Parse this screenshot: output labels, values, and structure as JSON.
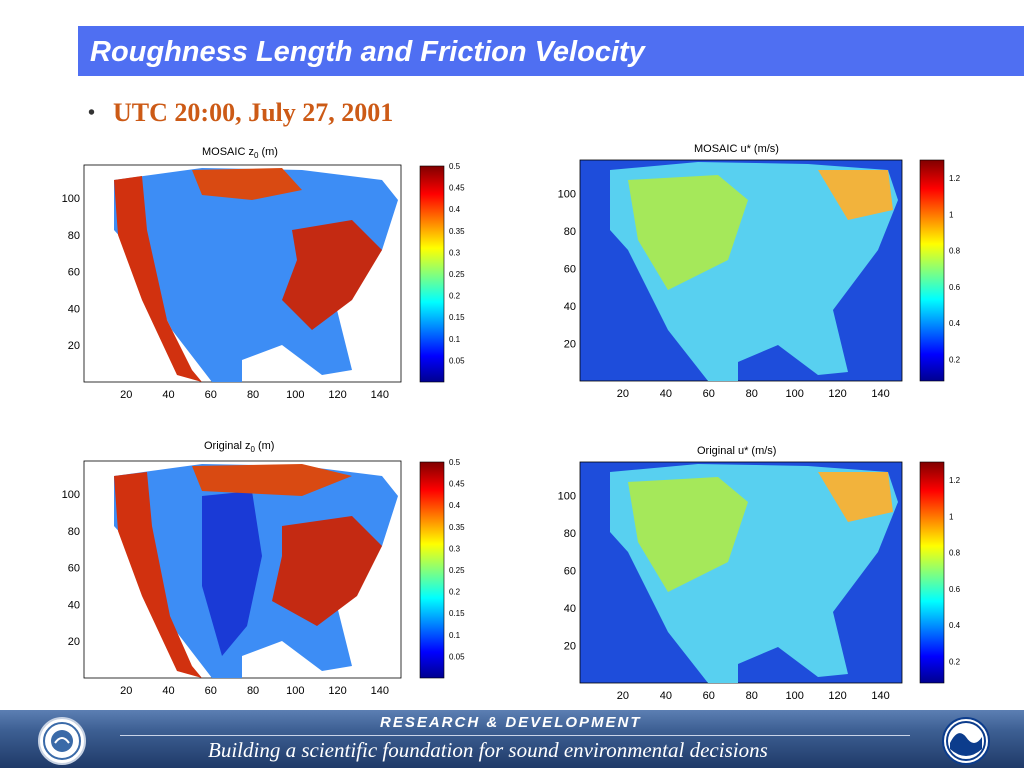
{
  "header": {
    "title": "Roughness Length and Friction Velocity"
  },
  "subtitle": {
    "bullet": "•",
    "text": "UTC 20:00, July 27, 2001"
  },
  "panels": [
    {
      "title_pre": "MOSAIC z",
      "title_sub": "0",
      "title_post": " (m)",
      "x_ticks": [
        "20",
        "40",
        "60",
        "80",
        "100",
        "120",
        "140"
      ],
      "y_ticks": [
        "20",
        "40",
        "60",
        "80",
        "100"
      ],
      "colorbar_ticks": [
        "0.05",
        "0.1",
        "0.15",
        "0.2",
        "0.25",
        "0.3",
        "0.35",
        "0.4",
        "0.45",
        "0.5"
      ]
    },
    {
      "title_pre": "MOSAIC u* (m/s)",
      "title_sub": "",
      "title_post": "",
      "x_ticks": [
        "20",
        "40",
        "60",
        "80",
        "100",
        "120",
        "140"
      ],
      "y_ticks": [
        "20",
        "40",
        "60",
        "80",
        "100"
      ],
      "colorbar_ticks": [
        "0.2",
        "0.4",
        "0.6",
        "0.8",
        "1",
        "1.2"
      ]
    },
    {
      "title_pre": "Original z",
      "title_sub": "0",
      "title_post": " (m)",
      "x_ticks": [
        "20",
        "40",
        "60",
        "80",
        "100",
        "120",
        "140"
      ],
      "y_ticks": [
        "20",
        "40",
        "60",
        "80",
        "100"
      ],
      "colorbar_ticks": [
        "0.05",
        "0.1",
        "0.15",
        "0.2",
        "0.25",
        "0.3",
        "0.35",
        "0.4",
        "0.45",
        "0.5"
      ]
    },
    {
      "title_pre": "Original u* (m/s)",
      "title_sub": "",
      "title_post": "",
      "x_ticks": [
        "20",
        "40",
        "60",
        "80",
        "100",
        "120",
        "140"
      ],
      "y_ticks": [
        "20",
        "40",
        "60",
        "80",
        "100"
      ],
      "colorbar_ticks": [
        "0.2",
        "0.4",
        "0.6",
        "0.8",
        "1",
        "1.2"
      ]
    }
  ],
  "footer": {
    "top": "RESEARCH & DEVELOPMENT",
    "bottom": "Building a scientific foundation for sound environmental decisions"
  },
  "icons": {
    "left_logo": "epa-seal-logo",
    "right_logo": "noaa-logo"
  },
  "colors": {
    "title_bar": "#4f6ff2",
    "subtitle": "#cc5a16",
    "footer": "#1f3a68"
  }
}
